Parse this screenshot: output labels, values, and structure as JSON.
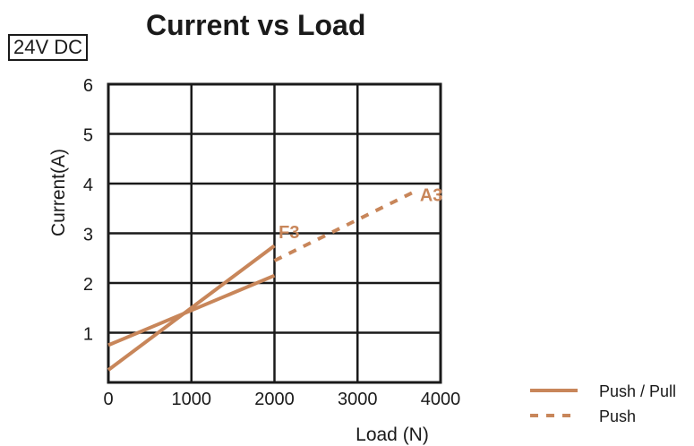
{
  "chart_data": {
    "type": "line",
    "title": "Current vs Load",
    "badge": "24V DC",
    "xlabel": "Load (N)",
    "ylabel": "Current(A)",
    "xlim": [
      0,
      4000
    ],
    "ylim": [
      0,
      6
    ],
    "x_ticks": [
      0,
      1000,
      2000,
      3000,
      4000
    ],
    "y_ticks": [
      1,
      2,
      3,
      4,
      5,
      6
    ],
    "grid": true,
    "colors": {
      "series": "#c8865a",
      "grid": "#1a1a1a"
    },
    "series": [
      {
        "name": "F3",
        "style": "solid",
        "x": [
          0,
          2000
        ],
        "y": [
          0.25,
          2.75
        ]
      },
      {
        "name": "F3",
        "style": "solid",
        "x": [
          0,
          2000
        ],
        "y": [
          0.75,
          2.15
        ]
      },
      {
        "name": "A3",
        "style": "dashed",
        "x": [
          2000,
          3700
        ],
        "y": [
          2.45,
          3.85
        ]
      }
    ],
    "annotations": [
      {
        "text": "F3",
        "x": 2050,
        "y": 2.9
      },
      {
        "text": "A3",
        "x": 3750,
        "y": 3.65
      }
    ],
    "legend": {
      "position": "bottom-right",
      "entries": [
        {
          "label": "Push / Pull",
          "style": "solid"
        },
        {
          "label": "Push",
          "style": "dashed"
        }
      ]
    }
  }
}
